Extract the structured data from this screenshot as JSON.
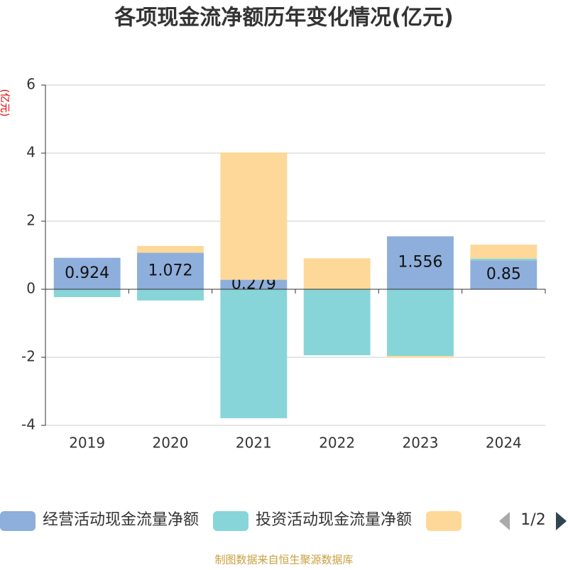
{
  "chart_data": {
    "type": "bar",
    "stacked": true,
    "title": "各项现金流净额历年变化情况(亿元)",
    "y_label": "(亿元)",
    "categories": [
      "2019",
      "2020",
      "2021",
      "2022",
      "2023",
      "2024"
    ],
    "series": [
      {
        "name": "经营活动现金流量净额",
        "color": "#8eaedb",
        "values": [
          0.924,
          1.072,
          0.279,
          0.011,
          1.556,
          0.85
        ],
        "labels": true
      },
      {
        "name": "投资活动现金流量净额",
        "color": "#87d5d8",
        "values": [
          -0.23,
          -0.33,
          -3.79,
          -1.94,
          -1.96,
          0.05
        ]
      },
      {
        "color": "#fdd898",
        "values": [
          0,
          0.2,
          3.74,
          0.9,
          -0.05,
          0.41
        ]
      }
    ],
    "ylim": [
      -4,
      6
    ],
    "yticks": [
      -4,
      -2,
      0,
      2,
      4,
      6
    ],
    "grid": true,
    "legend": {
      "page": "1/2"
    },
    "source": "制图数据来自恒生聚源数据库"
  }
}
